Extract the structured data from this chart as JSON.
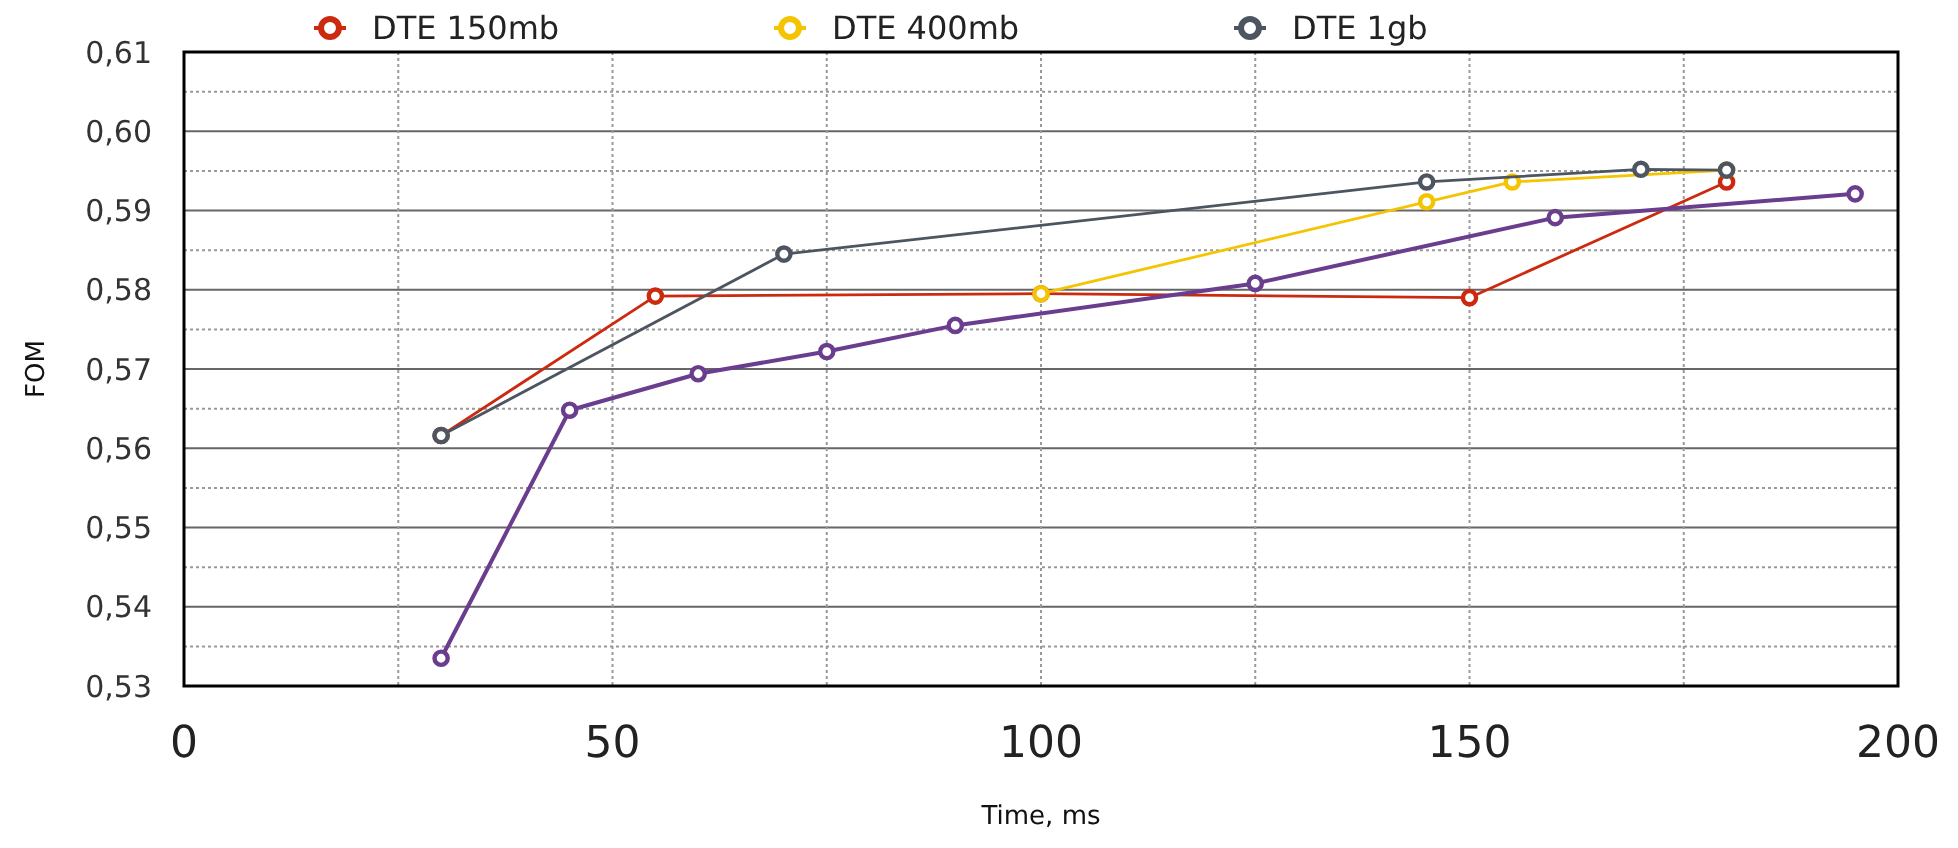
{
  "chart_data": {
    "type": "line",
    "xlabel": "Time, ms",
    "ylabel": "FOM",
    "xlim": [
      0,
      200
    ],
    "ylim": [
      0.53,
      0.61
    ],
    "xticks": [
      0,
      {
        "value": 25,
        "label": null
      },
      50,
      {
        "value": 75,
        "label": null
      },
      100,
      {
        "value": 125,
        "label": null
      },
      150,
      {
        "value": 175,
        "label": null
      },
      200
    ],
    "yticks": [
      {
        "value": 0.53,
        "label": "0,53"
      },
      {
        "value": 0.535,
        "label": null
      },
      {
        "value": 0.54,
        "label": "0,54"
      },
      {
        "value": 0.545,
        "label": null
      },
      {
        "value": 0.55,
        "label": "0,55"
      },
      {
        "value": 0.555,
        "label": null
      },
      {
        "value": 0.56,
        "label": "0,56"
      },
      {
        "value": 0.565,
        "label": null
      },
      {
        "value": 0.57,
        "label": "0,57"
      },
      {
        "value": 0.575,
        "label": null
      },
      {
        "value": 0.58,
        "label": "0,58"
      },
      {
        "value": 0.585,
        "label": null
      },
      {
        "value": 0.59,
        "label": "0,59"
      },
      {
        "value": 0.595,
        "label": null
      },
      {
        "value": 0.6,
        "label": "0,60"
      },
      {
        "value": 0.605,
        "label": null
      },
      {
        "value": 0.61,
        "label": "0,61"
      }
    ],
    "grid": true,
    "legend": "top",
    "marker": "circle",
    "line_style": "solid",
    "series": [
      {
        "name": "DTE 150mb",
        "color": "#cc2a0e",
        "x": [
          30,
          55,
          100,
          150,
          180
        ],
        "values": [
          0.5616,
          0.5792,
          0.5795,
          0.579,
          0.5936
        ]
      },
      {
        "name": "DTE 400mb",
        "color": "#f5c400",
        "x": [
          100,
          145,
          155,
          180
        ],
        "values": [
          0.5795,
          0.5911,
          0.5936,
          0.5951
        ]
      },
      {
        "name": "DTE 1gb",
        "color": "#4d5560",
        "x": [
          30,
          70,
          145,
          170,
          180
        ],
        "values": [
          0.5616,
          0.5845,
          0.5936,
          0.5952,
          0.5951
        ]
      },
      {
        "color": "#6a3d8f",
        "x": [
          30,
          45,
          60,
          75,
          90,
          125,
          160,
          195
        ],
        "values": [
          0.5335,
          0.5648,
          0.5694,
          0.5722,
          0.5755,
          0.5808,
          0.5891,
          0.5921
        ]
      }
    ]
  }
}
